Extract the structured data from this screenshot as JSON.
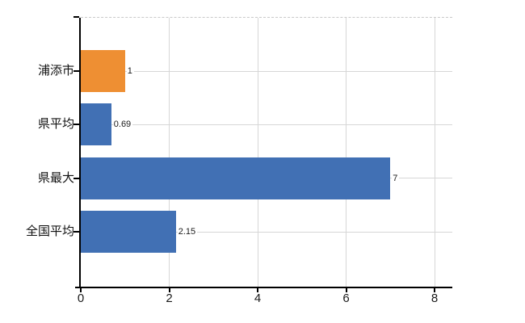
{
  "chart_data": {
    "type": "bar",
    "orientation": "horizontal",
    "title": "",
    "xlabel": "",
    "ylabel": "",
    "categories": [
      "浦添市",
      "県平均",
      "県最大",
      "全国平均"
    ],
    "values": [
      1,
      0.69,
      7,
      2.15
    ],
    "value_labels": [
      "1",
      "0.69",
      "7",
      "2.15"
    ],
    "bar_color_roles": [
      "highlight",
      "default",
      "default",
      "default"
    ],
    "series_colors": {
      "highlight": "#ee8f33",
      "default": "#4170b4"
    },
    "x_ticks": [
      "0",
      "2",
      "4",
      "6",
      "8"
    ],
    "x_tick_values": [
      0,
      2,
      4,
      6,
      8
    ],
    "xlim": [
      0,
      8.4
    ],
    "grid": true,
    "legend": "none",
    "gridline_color": "#d6d6d6",
    "axis_color": "#000000",
    "background_color": "#ffffff"
  }
}
